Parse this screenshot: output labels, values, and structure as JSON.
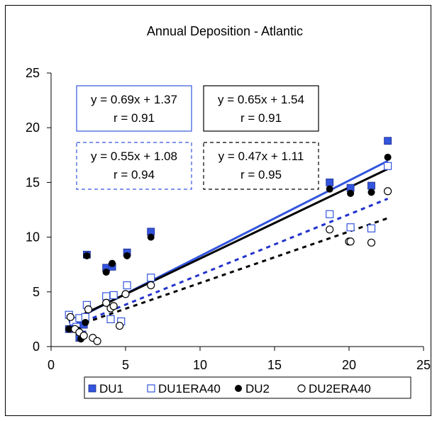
{
  "chart_data": {
    "type": "scatter",
    "title": "Annual Deposition - Atlantic",
    "xlim": [
      0,
      25
    ],
    "ylim": [
      0,
      25
    ],
    "xticks": [
      "0",
      "5",
      "10",
      "15",
      "20",
      "25"
    ],
    "yticks": [
      "0",
      "5",
      "10",
      "15",
      "20",
      "25"
    ],
    "grid": false,
    "legend_position": "bottom",
    "series": [
      {
        "name": "DU1",
        "color": "#3355dd",
        "marker": "filled-square",
        "points": [
          [
            1.2,
            1.6
          ],
          [
            1.6,
            2.0
          ],
          [
            1.9,
            0.8
          ],
          [
            2.1,
            1.1
          ],
          [
            2.2,
            2.0
          ],
          [
            2.4,
            8.4
          ],
          [
            3.7,
            7.2
          ],
          [
            4.1,
            7.3
          ],
          [
            5.1,
            8.6
          ],
          [
            6.7,
            10.5
          ],
          [
            18.7,
            15.0
          ],
          [
            20.1,
            14.5
          ],
          [
            21.5,
            14.7
          ],
          [
            22.6,
            18.8
          ]
        ]
      },
      {
        "name": "DU1ERA40",
        "color": "#3355dd",
        "marker": "open-square",
        "points": [
          [
            1.2,
            2.9
          ],
          [
            1.5,
            2.3
          ],
          [
            1.7,
            1.8
          ],
          [
            1.9,
            2.6
          ],
          [
            2.3,
            2.7
          ],
          [
            2.4,
            3.8
          ],
          [
            3.7,
            4.6
          ],
          [
            4.0,
            2.5
          ],
          [
            4.2,
            4.7
          ],
          [
            4.7,
            2.3
          ],
          [
            5.1,
            5.6
          ],
          [
            6.7,
            6.3
          ],
          [
            18.7,
            12.1
          ],
          [
            20.1,
            10.9
          ],
          [
            21.5,
            10.8
          ],
          [
            22.6,
            16.5
          ]
        ]
      },
      {
        "name": "DU2",
        "color": "#000000",
        "marker": "filled-circle",
        "points": [
          [
            1.2,
            1.6
          ],
          [
            1.8,
            1.5
          ],
          [
            2.0,
            0.7
          ],
          [
            2.3,
            2.2
          ],
          [
            2.4,
            8.3
          ],
          [
            3.7,
            6.8
          ],
          [
            4.1,
            7.6
          ],
          [
            5.1,
            8.3
          ],
          [
            6.7,
            10.0
          ],
          [
            18.7,
            14.4
          ],
          [
            20.1,
            14.0
          ],
          [
            21.5,
            14.1
          ],
          [
            22.6,
            17.3
          ]
        ]
      },
      {
        "name": "DU2ERA40",
        "color": "#000000",
        "marker": "open-circle",
        "points": [
          [
            1.3,
            2.7
          ],
          [
            1.6,
            1.6
          ],
          [
            1.9,
            1.3
          ],
          [
            2.2,
            1.0
          ],
          [
            2.5,
            3.4
          ],
          [
            2.8,
            0.8
          ],
          [
            3.1,
            0.5
          ],
          [
            3.7,
            4.0
          ],
          [
            4.0,
            3.5
          ],
          [
            4.2,
            3.7
          ],
          [
            4.6,
            1.9
          ],
          [
            5.0,
            4.8
          ],
          [
            6.7,
            5.6
          ],
          [
            18.7,
            10.7
          ],
          [
            20.0,
            9.6
          ],
          [
            20.1,
            9.6
          ],
          [
            21.5,
            9.5
          ],
          [
            22.6,
            14.2
          ]
        ]
      }
    ],
    "trendlines": [
      {
        "series": "DU1",
        "slope": 0.69,
        "intercept": 1.37,
        "x_range": [
          1.2,
          22.6
        ],
        "color": "#3355dd",
        "dashed": false
      },
      {
        "series": "DU2",
        "slope": 0.65,
        "intercept": 1.54,
        "x_range": [
          1.2,
          22.6
        ],
        "color": "#000000",
        "dashed": false
      },
      {
        "series": "DU1ERA40",
        "slope": 0.55,
        "intercept": 1.08,
        "x_range": [
          1.2,
          22.6
        ],
        "color": "#2233cc",
        "dashed": true
      },
      {
        "series": "DU2ERA40",
        "slope": 0.47,
        "intercept": 1.11,
        "x_range": [
          1.2,
          22.6
        ],
        "color": "#000000",
        "dashed": true
      }
    ],
    "annotations": [
      {
        "line1": "y = 0.69x + 1.37",
        "line2": "r = 0.91",
        "color": "#3355dd",
        "dashed": false
      },
      {
        "line1": "y = 0.65x + 1.54",
        "line2": "r = 0.91",
        "color": "#000000",
        "dashed": false
      },
      {
        "line1": "y = 0.55x + 1.08",
        "line2": "r = 0.94",
        "color": "#3355dd",
        "dashed": true
      },
      {
        "line1": "y = 0.47x + 1.11",
        "line2": "r = 0.95",
        "color": "#000000",
        "dashed": true
      }
    ]
  }
}
